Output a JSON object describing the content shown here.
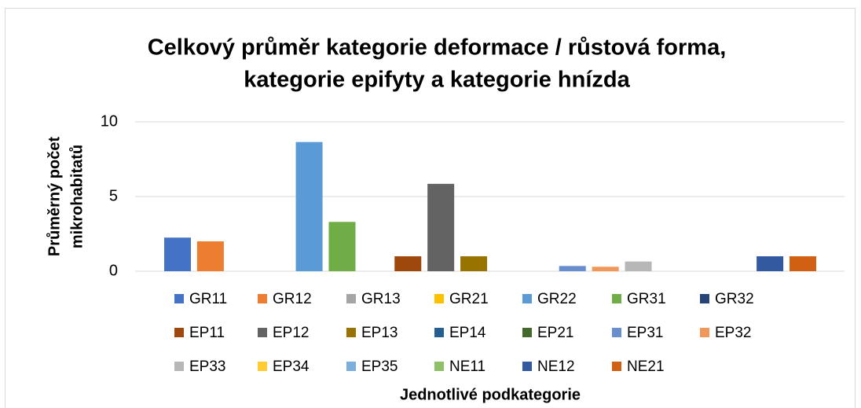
{
  "chart_data": {
    "type": "bar",
    "title": [
      "Celkový průměr kategorie deformace / růstová forma,",
      "kategorie epifyty a kategorie hnízda"
    ],
    "y_label": [
      "Průměrný počet",
      "mikrohabitatů"
    ],
    "x_label": "Jednotlivé podkategorie",
    "ylim": [
      0,
      10
    ],
    "yticks": [
      0,
      5,
      10
    ],
    "grid": true,
    "legend": "bottom",
    "series": [
      {
        "name": "GR11",
        "color": "#4472c4",
        "values": [
          2.25
        ]
      },
      {
        "name": "GR12",
        "color": "#ed7d31",
        "values": [
          2.0
        ]
      },
      {
        "name": "GR13",
        "color": "#a5a5a5",
        "values": [
          0
        ]
      },
      {
        "name": "GR21",
        "color": "#ffc000",
        "values": [
          0
        ]
      },
      {
        "name": "GR22",
        "color": "#5b9bd5",
        "values": [
          8.65
        ]
      },
      {
        "name": "GR31",
        "color": "#70ad47",
        "values": [
          3.3
        ]
      },
      {
        "name": "GR32",
        "color": "#264478",
        "values": [
          0
        ]
      },
      {
        "name": "EP11",
        "color": "#9e480e",
        "values": [
          1.0
        ]
      },
      {
        "name": "EP12",
        "color": "#636363",
        "values": [
          5.85
        ]
      },
      {
        "name": "EP13",
        "color": "#997300",
        "values": [
          1.0
        ]
      },
      {
        "name": "EP14",
        "color": "#255e91",
        "values": [
          0
        ]
      },
      {
        "name": "EP21",
        "color": "#43682b",
        "values": [
          0
        ]
      },
      {
        "name": "EP31",
        "color": "#698ed0",
        "values": [
          0.35
        ]
      },
      {
        "name": "EP32",
        "color": "#f1975a",
        "values": [
          0.3
        ]
      },
      {
        "name": "EP33",
        "color": "#b7b7b7",
        "values": [
          0.65
        ]
      },
      {
        "name": "EP34",
        "color": "#ffcd33",
        "values": [
          0
        ]
      },
      {
        "name": "EP35",
        "color": "#7cafdd",
        "values": [
          0
        ]
      },
      {
        "name": "NE11",
        "color": "#8cc168",
        "values": [
          0
        ]
      },
      {
        "name": "NE12",
        "color": "#335aa1",
        "values": [
          1.0
        ]
      },
      {
        "name": "NE21",
        "color": "#d26012",
        "values": [
          1.0
        ]
      }
    ]
  }
}
